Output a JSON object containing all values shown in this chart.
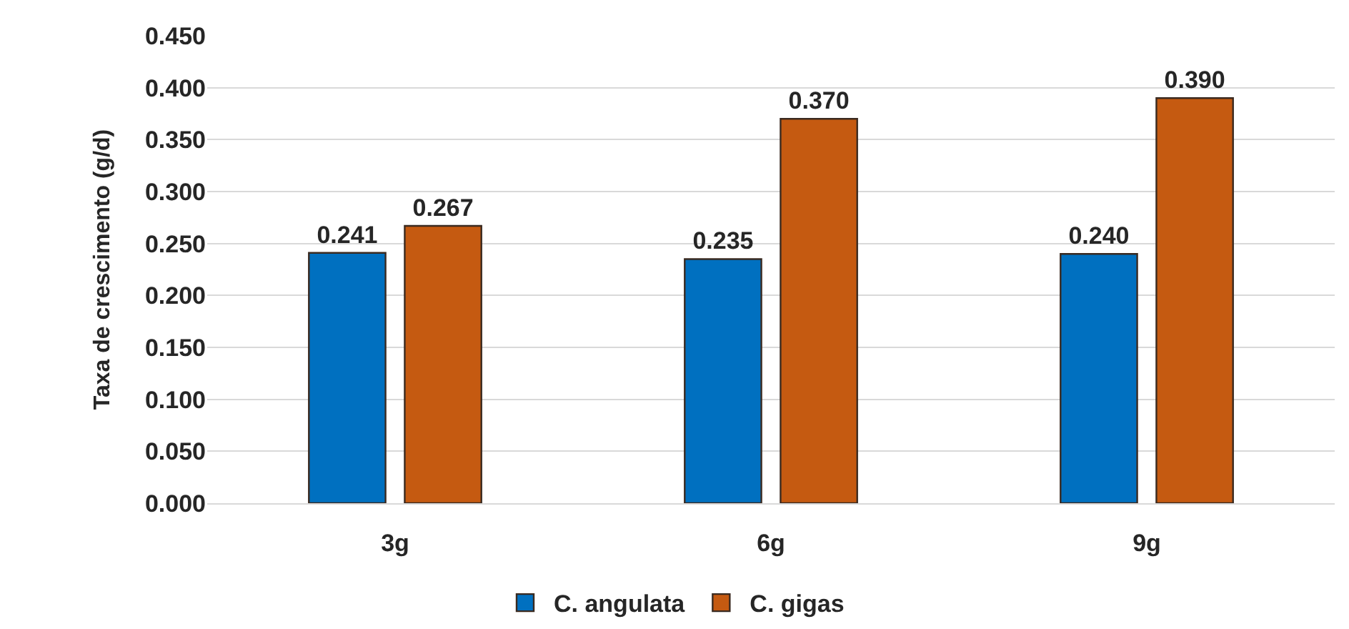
{
  "chart_data": {
    "type": "bar",
    "ylabel": "Taxa de crescimento (g/d)",
    "categories": [
      "3g",
      "6g",
      "9g"
    ],
    "series": [
      {
        "name": "C. angulata",
        "color": "#0070c0",
        "values": [
          0.241,
          0.235,
          0.24
        ],
        "value_labels": [
          "0.241",
          "0.235",
          "0.240"
        ]
      },
      {
        "name": "C. gigas",
        "color": "#c55a11",
        "values": [
          0.267,
          0.37,
          0.39
        ],
        "value_labels": [
          "0.267",
          "0.370",
          "0.390"
        ]
      }
    ],
    "ylim": [
      0,
      0.45
    ],
    "yticks": [
      {
        "value": 0,
        "label": "0.000"
      },
      {
        "value": 0.05,
        "label": "0.050"
      },
      {
        "value": 0.1,
        "label": "0.100"
      },
      {
        "value": 0.15,
        "label": "0.150"
      },
      {
        "value": 0.2,
        "label": "0.200"
      },
      {
        "value": 0.25,
        "label": "0.250"
      },
      {
        "value": 0.3,
        "label": "0.300"
      },
      {
        "value": 0.35,
        "label": "0.350"
      },
      {
        "value": 0.4,
        "label": "0.400"
      },
      {
        "value": 0.45,
        "label": "0.450"
      }
    ],
    "grid": "y",
    "legend": "bottom"
  }
}
